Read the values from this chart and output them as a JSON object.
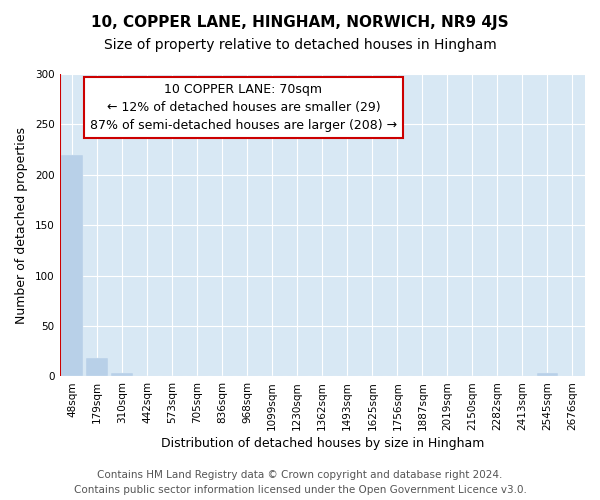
{
  "title": "10, COPPER LANE, HINGHAM, NORWICH, NR9 4JS",
  "subtitle": "Size of property relative to detached houses in Hingham",
  "xlabel": "Distribution of detached houses by size in Hingham",
  "ylabel": "Number of detached properties",
  "categories": [
    "48sqm",
    "179sqm",
    "310sqm",
    "442sqm",
    "573sqm",
    "705sqm",
    "836sqm",
    "968sqm",
    "1099sqm",
    "1230sqm",
    "1362sqm",
    "1493sqm",
    "1625sqm",
    "1756sqm",
    "1887sqm",
    "2019sqm",
    "2150sqm",
    "2282sqm",
    "2413sqm",
    "2545sqm",
    "2676sqm"
  ],
  "values": [
    220,
    18,
    3,
    0,
    0,
    0,
    0,
    0,
    0,
    0,
    0,
    0,
    0,
    0,
    0,
    0,
    0,
    0,
    0,
    3,
    0
  ],
  "bar_color": "#b8d0e8",
  "vline_color": "#cc0000",
  "annotation_box_text": "10 COPPER LANE: 70sqm\n← 12% of detached houses are smaller (29)\n87% of semi-detached houses are larger (208) →",
  "ylim": [
    0,
    300
  ],
  "yticks": [
    0,
    50,
    100,
    150,
    200,
    250,
    300
  ],
  "fig_bg_color": "#ffffff",
  "plot_bg_color": "#d8e8f4",
  "footer_line1": "Contains HM Land Registry data © Crown copyright and database right 2024.",
  "footer_line2": "Contains public sector information licensed under the Open Government Licence v3.0.",
  "title_fontsize": 11,
  "subtitle_fontsize": 10,
  "xlabel_fontsize": 9,
  "ylabel_fontsize": 9,
  "tick_fontsize": 7.5,
  "annotation_fontsize": 9,
  "footer_fontsize": 7.5
}
